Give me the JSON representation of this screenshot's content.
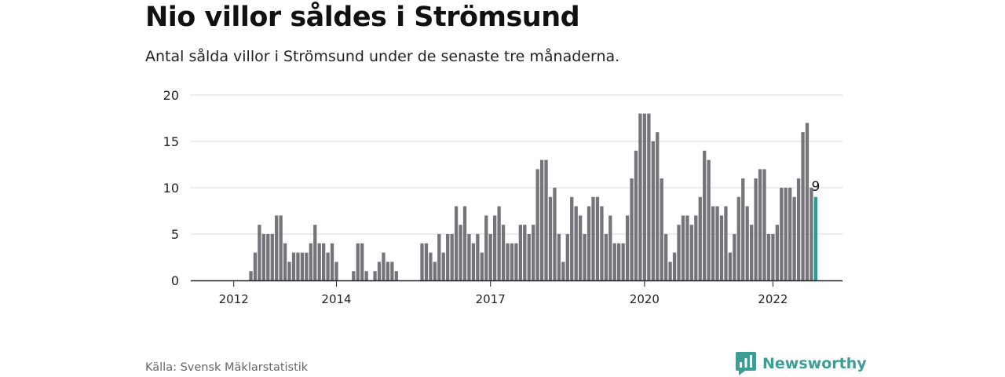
{
  "header": {
    "title": "Nio villor såldes i Strömsund",
    "subtitle": "Antal sålda villor i Strömsund under de senaste tre månaderna."
  },
  "footer": {
    "source": "Källa: Svensk Mäklarstatistik",
    "brand": "Newsworthy"
  },
  "colors": {
    "bar": "#75747b",
    "highlight": "#1f9e98",
    "grid": "#d9d9d9",
    "axis": "#222222",
    "brand": "#3a9e97"
  },
  "chart_data": {
    "type": "bar",
    "title": "Nio villor såldes i Strömsund",
    "ylim": [
      0,
      20
    ],
    "yticks": [
      0,
      5,
      10,
      15,
      20
    ],
    "xtick_labels": [
      "2012",
      "2014",
      "2017",
      "2020",
      "2022"
    ],
    "highlight_label": "9",
    "grid": true,
    "values": [
      null,
      null,
      null,
      null,
      null,
      null,
      null,
      null,
      null,
      null,
      1,
      3,
      6,
      5,
      5,
      5,
      7,
      7,
      4,
      2,
      3,
      3,
      3,
      3,
      4,
      6,
      4,
      4,
      3,
      4,
      2,
      null,
      null,
      null,
      1,
      4,
      4,
      1,
      null,
      1,
      2,
      3,
      2,
      2,
      1,
      null,
      null,
      null,
      null,
      null,
      4,
      4,
      3,
      2,
      5,
      3,
      5,
      5,
      8,
      6,
      8,
      5,
      4,
      5,
      3,
      7,
      5,
      7,
      8,
      6,
      4,
      4,
      4,
      6,
      6,
      5,
      6,
      12,
      13,
      13,
      9,
      10,
      5,
      2,
      5,
      9,
      8,
      7,
      5,
      8,
      9,
      9,
      8,
      5,
      7,
      4,
      4,
      4,
      7,
      11,
      14,
      18,
      18,
      18,
      15,
      16,
      11,
      5,
      2,
      3,
      6,
      7,
      7,
      6,
      7,
      9,
      14,
      13,
      8,
      8,
      7,
      8,
      3,
      5,
      9,
      11,
      8,
      6,
      11,
      12,
      12,
      5,
      5,
      6,
      10,
      10,
      10,
      9,
      11,
      16,
      17,
      10,
      9
    ],
    "highlight_last": true
  }
}
